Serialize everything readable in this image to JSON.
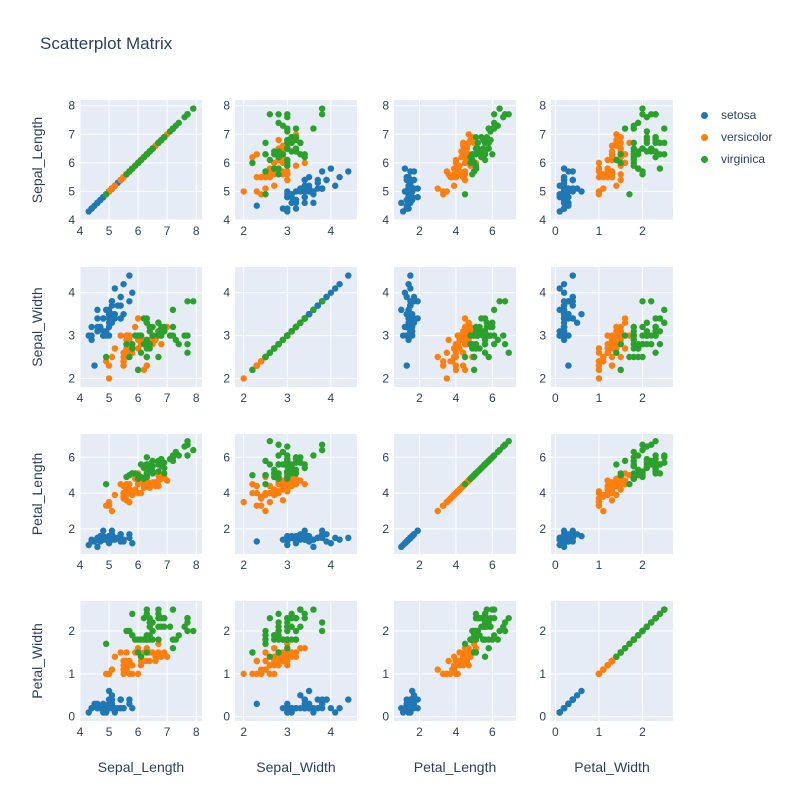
{
  "chart_data": {
    "type": "scatter",
    "title": "Scatterplot Matrix",
    "dimensions": [
      "Sepal_Length",
      "Sepal_Width",
      "Petal_Length",
      "Petal_Width"
    ],
    "axes": {
      "Sepal_Length": {
        "range": [
          4,
          8.2
        ],
        "ticks": [
          4,
          5,
          6,
          7,
          8
        ]
      },
      "Sepal_Width": {
        "range": [
          1.8,
          4.6
        ],
        "ticks": [
          2,
          3,
          4
        ]
      },
      "Petal_Length": {
        "range": [
          0.6,
          7.3
        ],
        "ticks": [
          2,
          4,
          6
        ]
      },
      "Petal_Width": {
        "range": [
          -0.1,
          2.7
        ],
        "ticks": [
          0,
          1,
          2
        ]
      }
    },
    "grid": true,
    "legend_position": "top-right",
    "series": [
      {
        "name": "setosa",
        "color": "#1f77b4",
        "points": [
          [
            5.1,
            3.5,
            1.4,
            0.2
          ],
          [
            4.9,
            3.0,
            1.4,
            0.2
          ],
          [
            4.7,
            3.2,
            1.3,
            0.2
          ],
          [
            4.6,
            3.1,
            1.5,
            0.2
          ],
          [
            5.0,
            3.6,
            1.4,
            0.2
          ],
          [
            5.4,
            3.9,
            1.7,
            0.4
          ],
          [
            4.6,
            3.4,
            1.4,
            0.3
          ],
          [
            5.0,
            3.4,
            1.5,
            0.2
          ],
          [
            4.4,
            2.9,
            1.4,
            0.2
          ],
          [
            4.9,
            3.1,
            1.5,
            0.1
          ],
          [
            5.4,
            3.7,
            1.5,
            0.2
          ],
          [
            4.8,
            3.4,
            1.6,
            0.2
          ],
          [
            4.8,
            3.0,
            1.4,
            0.1
          ],
          [
            4.3,
            3.0,
            1.1,
            0.1
          ],
          [
            5.8,
            4.0,
            1.2,
            0.2
          ],
          [
            5.7,
            4.4,
            1.5,
            0.4
          ],
          [
            5.4,
            3.9,
            1.3,
            0.4
          ],
          [
            5.1,
            3.5,
            1.4,
            0.3
          ],
          [
            5.7,
            3.8,
            1.7,
            0.3
          ],
          [
            5.1,
            3.8,
            1.5,
            0.3
          ],
          [
            5.4,
            3.4,
            1.7,
            0.2
          ],
          [
            5.1,
            3.7,
            1.5,
            0.4
          ],
          [
            4.6,
            3.6,
            1.0,
            0.2
          ],
          [
            5.1,
            3.3,
            1.7,
            0.5
          ],
          [
            4.8,
            3.4,
            1.9,
            0.2
          ],
          [
            5.0,
            3.0,
            1.6,
            0.2
          ],
          [
            5.0,
            3.4,
            1.6,
            0.4
          ],
          [
            5.2,
            3.5,
            1.5,
            0.2
          ],
          [
            5.2,
            3.4,
            1.4,
            0.2
          ],
          [
            4.7,
            3.2,
            1.6,
            0.2
          ],
          [
            4.8,
            3.1,
            1.6,
            0.2
          ],
          [
            5.4,
            3.4,
            1.5,
            0.4
          ],
          [
            5.2,
            4.1,
            1.5,
            0.1
          ],
          [
            5.5,
            4.2,
            1.4,
            0.2
          ],
          [
            4.9,
            3.1,
            1.5,
            0.2
          ],
          [
            5.0,
            3.2,
            1.2,
            0.2
          ],
          [
            5.5,
            3.5,
            1.3,
            0.2
          ],
          [
            4.9,
            3.6,
            1.4,
            0.1
          ],
          [
            4.4,
            3.0,
            1.3,
            0.2
          ],
          [
            5.1,
            3.4,
            1.5,
            0.2
          ],
          [
            5.0,
            3.5,
            1.3,
            0.3
          ],
          [
            4.5,
            2.3,
            1.3,
            0.3
          ],
          [
            4.4,
            3.2,
            1.3,
            0.2
          ],
          [
            5.0,
            3.5,
            1.6,
            0.6
          ],
          [
            5.1,
            3.8,
            1.9,
            0.4
          ],
          [
            4.8,
            3.0,
            1.4,
            0.3
          ],
          [
            5.1,
            3.8,
            1.6,
            0.2
          ],
          [
            4.6,
            3.2,
            1.4,
            0.2
          ],
          [
            5.3,
            3.7,
            1.5,
            0.2
          ],
          [
            5.0,
            3.3,
            1.4,
            0.2
          ]
        ]
      },
      {
        "name": "versicolor",
        "color": "#ff7f0e",
        "points": [
          [
            7.0,
            3.2,
            4.7,
            1.4
          ],
          [
            6.4,
            3.2,
            4.5,
            1.5
          ],
          [
            6.9,
            3.1,
            4.9,
            1.5
          ],
          [
            5.5,
            2.3,
            4.0,
            1.3
          ],
          [
            6.5,
            2.8,
            4.6,
            1.5
          ],
          [
            5.7,
            2.8,
            4.5,
            1.3
          ],
          [
            6.3,
            3.3,
            4.7,
            1.6
          ],
          [
            4.9,
            2.4,
            3.3,
            1.0
          ],
          [
            6.6,
            2.9,
            4.6,
            1.3
          ],
          [
            5.2,
            2.7,
            3.9,
            1.4
          ],
          [
            5.0,
            2.0,
            3.5,
            1.0
          ],
          [
            5.9,
            3.0,
            4.2,
            1.5
          ],
          [
            6.0,
            2.2,
            4.0,
            1.0
          ],
          [
            6.1,
            2.9,
            4.7,
            1.4
          ],
          [
            5.6,
            2.9,
            3.6,
            1.3
          ],
          [
            6.7,
            3.1,
            4.4,
            1.4
          ],
          [
            5.6,
            3.0,
            4.5,
            1.5
          ],
          [
            5.8,
            2.7,
            4.1,
            1.0
          ],
          [
            6.2,
            2.2,
            4.5,
            1.5
          ],
          [
            5.6,
            2.5,
            3.9,
            1.1
          ],
          [
            5.9,
            3.2,
            4.8,
            1.8
          ],
          [
            6.1,
            2.8,
            4.0,
            1.3
          ],
          [
            6.3,
            2.5,
            4.9,
            1.5
          ],
          [
            6.1,
            2.8,
            4.7,
            1.2
          ],
          [
            6.4,
            2.9,
            4.3,
            1.3
          ],
          [
            6.6,
            3.0,
            4.4,
            1.4
          ],
          [
            6.8,
            2.8,
            4.8,
            1.4
          ],
          [
            6.7,
            3.0,
            5.0,
            1.7
          ],
          [
            6.0,
            2.9,
            4.5,
            1.5
          ],
          [
            5.7,
            2.6,
            3.5,
            1.0
          ],
          [
            5.5,
            2.4,
            3.8,
            1.1
          ],
          [
            5.5,
            2.4,
            3.7,
            1.0
          ],
          [
            5.8,
            2.7,
            3.9,
            1.2
          ],
          [
            6.0,
            2.7,
            5.1,
            1.6
          ],
          [
            5.4,
            3.0,
            4.5,
            1.5
          ],
          [
            6.0,
            3.4,
            4.5,
            1.6
          ],
          [
            6.7,
            3.1,
            4.7,
            1.5
          ],
          [
            6.3,
            2.3,
            4.4,
            1.3
          ],
          [
            5.6,
            3.0,
            4.1,
            1.3
          ],
          [
            5.5,
            2.5,
            4.0,
            1.3
          ],
          [
            5.5,
            2.6,
            4.4,
            1.2
          ],
          [
            6.1,
            3.0,
            4.6,
            1.4
          ],
          [
            5.8,
            2.6,
            4.0,
            1.2
          ],
          [
            5.0,
            2.3,
            3.3,
            1.0
          ],
          [
            5.6,
            2.7,
            4.2,
            1.3
          ],
          [
            5.7,
            3.0,
            4.2,
            1.2
          ],
          [
            5.7,
            2.9,
            4.2,
            1.3
          ],
          [
            6.2,
            2.9,
            4.3,
            1.3
          ],
          [
            5.1,
            2.5,
            3.0,
            1.1
          ],
          [
            5.7,
            2.8,
            4.1,
            1.3
          ]
        ]
      },
      {
        "name": "virginica",
        "color": "#2ca02c",
        "points": [
          [
            6.3,
            3.3,
            6.0,
            2.5
          ],
          [
            5.8,
            2.7,
            5.1,
            1.9
          ],
          [
            7.1,
            3.0,
            5.9,
            2.1
          ],
          [
            6.3,
            2.9,
            5.6,
            1.8
          ],
          [
            6.5,
            3.0,
            5.8,
            2.2
          ],
          [
            7.6,
            3.0,
            6.6,
            2.1
          ],
          [
            4.9,
            2.5,
            4.5,
            1.7
          ],
          [
            7.3,
            2.9,
            6.3,
            1.8
          ],
          [
            6.7,
            2.5,
            5.8,
            1.8
          ],
          [
            7.2,
            3.6,
            6.1,
            2.5
          ],
          [
            6.5,
            3.2,
            5.1,
            2.0
          ],
          [
            6.4,
            2.7,
            5.3,
            1.9
          ],
          [
            6.8,
            3.0,
            5.5,
            2.1
          ],
          [
            5.7,
            2.5,
            5.0,
            2.0
          ],
          [
            5.8,
            2.8,
            5.1,
            2.4
          ],
          [
            6.4,
            3.2,
            5.3,
            2.3
          ],
          [
            6.5,
            3.0,
            5.5,
            1.8
          ],
          [
            7.7,
            3.8,
            6.7,
            2.2
          ],
          [
            7.7,
            2.6,
            6.9,
            2.3
          ],
          [
            6.0,
            2.2,
            5.0,
            1.5
          ],
          [
            6.9,
            3.2,
            5.7,
            2.3
          ],
          [
            5.6,
            2.8,
            4.9,
            2.0
          ],
          [
            7.7,
            2.8,
            6.7,
            2.0
          ],
          [
            6.3,
            2.7,
            4.9,
            1.8
          ],
          [
            6.7,
            3.3,
            5.7,
            2.1
          ],
          [
            7.2,
            3.2,
            6.0,
            1.8
          ],
          [
            6.2,
            2.8,
            4.8,
            1.8
          ],
          [
            6.1,
            3.0,
            4.9,
            1.8
          ],
          [
            6.4,
            2.8,
            5.6,
            2.1
          ],
          [
            7.2,
            3.0,
            5.8,
            1.6
          ],
          [
            7.4,
            2.8,
            6.1,
            1.9
          ],
          [
            7.9,
            3.8,
            6.4,
            2.0
          ],
          [
            6.4,
            2.8,
            5.6,
            2.2
          ],
          [
            6.3,
            2.8,
            5.1,
            1.5
          ],
          [
            6.1,
            2.6,
            5.6,
            1.4
          ],
          [
            7.7,
            3.0,
            6.1,
            2.3
          ],
          [
            6.3,
            3.4,
            5.6,
            2.4
          ],
          [
            6.4,
            3.1,
            5.5,
            1.8
          ],
          [
            6.0,
            3.0,
            4.8,
            1.8
          ],
          [
            6.9,
            3.1,
            5.4,
            2.1
          ],
          [
            6.7,
            3.1,
            5.6,
            2.4
          ],
          [
            6.9,
            3.1,
            5.1,
            2.3
          ],
          [
            5.8,
            2.7,
            5.1,
            1.9
          ],
          [
            6.8,
            3.2,
            5.9,
            2.3
          ],
          [
            6.7,
            3.3,
            5.7,
            2.5
          ],
          [
            6.7,
            3.0,
            5.2,
            2.3
          ],
          [
            6.3,
            2.5,
            5.0,
            1.9
          ],
          [
            6.5,
            3.0,
            5.2,
            2.0
          ],
          [
            6.2,
            3.4,
            5.4,
            2.3
          ],
          [
            5.9,
            3.0,
            5.1,
            1.8
          ]
        ]
      }
    ]
  }
}
